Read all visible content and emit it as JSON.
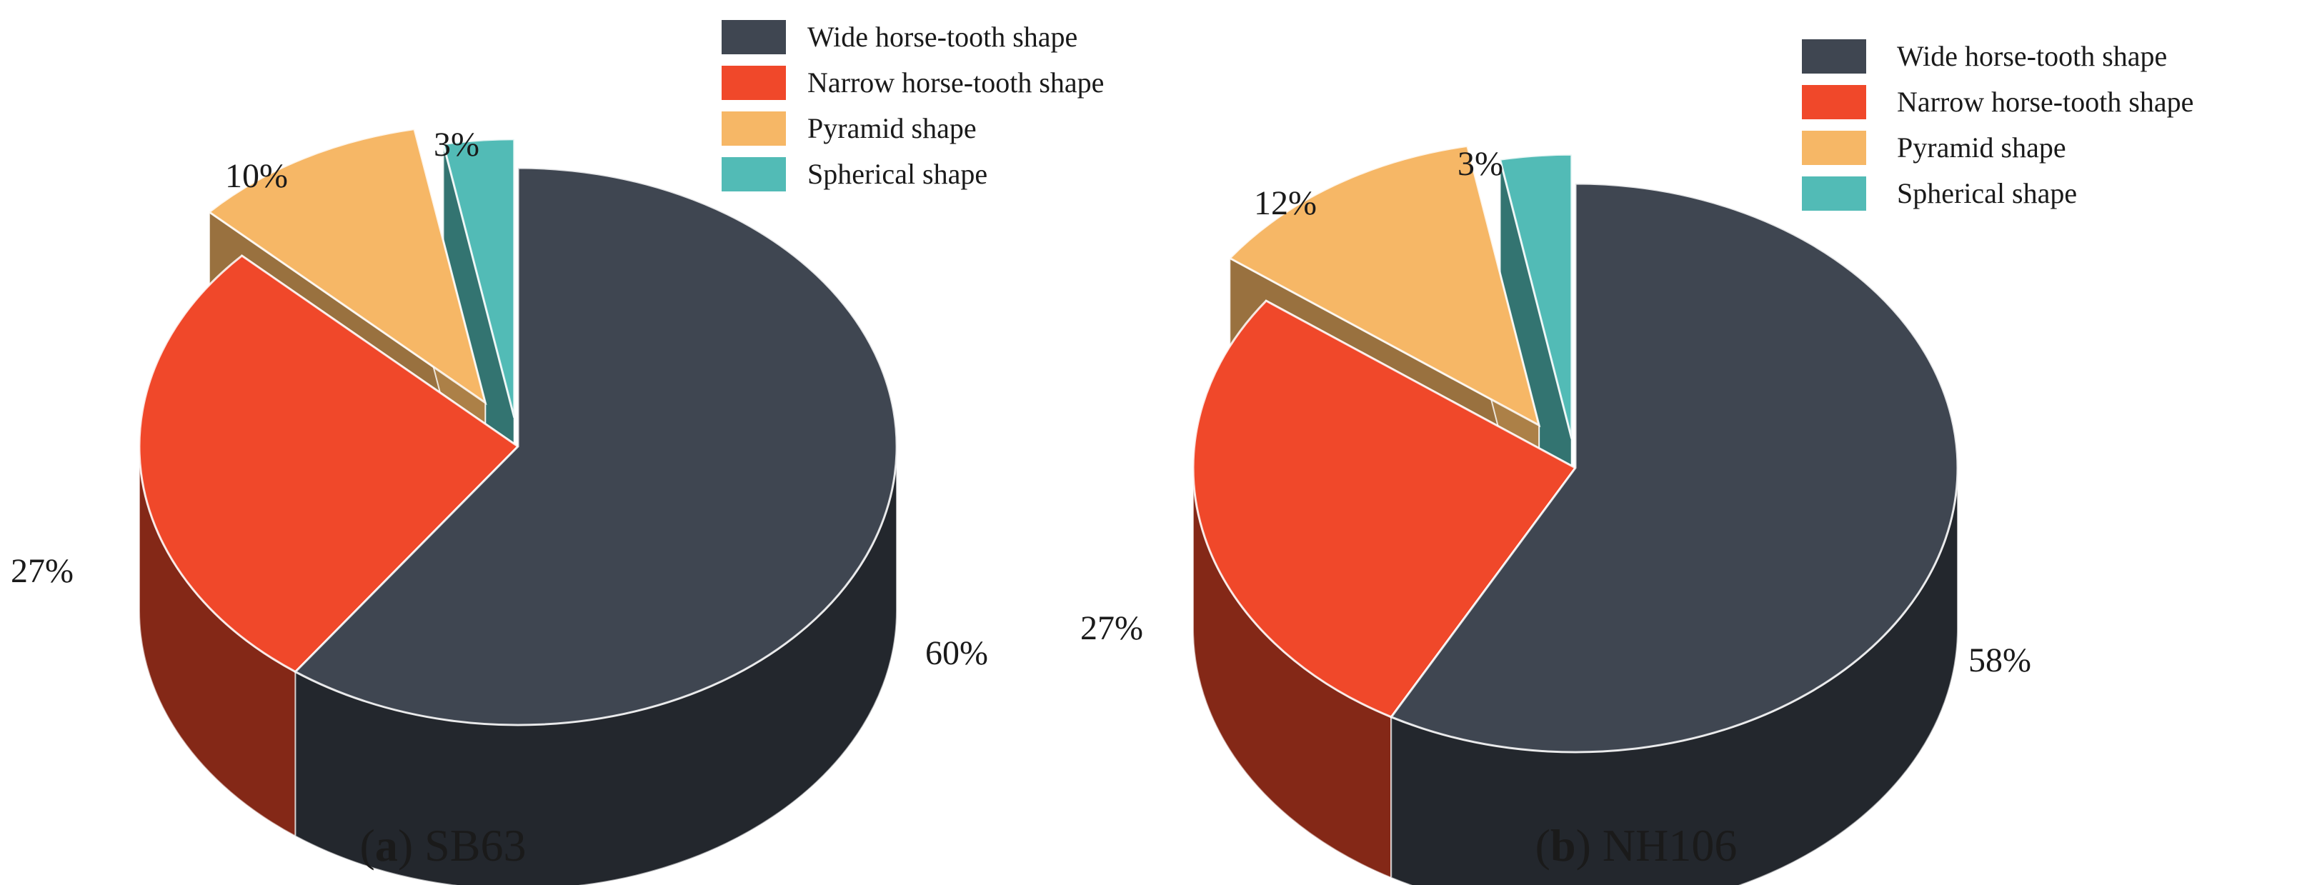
{
  "colors": {
    "wide": "#3f4651",
    "narrow": "#f0482a",
    "pyramid": "#f6b766",
    "spherical": "#52bbb6"
  },
  "chart_data": [
    {
      "type": "pie",
      "style": "3d-exploded",
      "caption_letter": "a",
      "caption_label": "SB63",
      "legend": [
        "Wide horse-tooth shape",
        "Narrow horse-tooth shape",
        "Pyramid shape",
        "Spherical shape"
      ],
      "slices": [
        {
          "label": "Wide horse-tooth shape",
          "value": 60,
          "display": "60%"
        },
        {
          "label": "Narrow horse-tooth shape",
          "value": 27,
          "display": "27%"
        },
        {
          "label": "Pyramid shape",
          "value": 10,
          "display": "10%"
        },
        {
          "label": "Spherical shape",
          "value": 3,
          "display": "3%"
        }
      ]
    },
    {
      "type": "pie",
      "style": "3d-exploded",
      "caption_letter": "b",
      "caption_label": "NH106",
      "legend": [
        "Wide horse-tooth shape",
        "Narrow horse-tooth shape",
        "Pyramid shape",
        "Spherical shape"
      ],
      "slices": [
        {
          "label": "Wide horse-tooth shape",
          "value": 58,
          "display": "58%"
        },
        {
          "label": "Narrow horse-tooth shape",
          "value": 27,
          "display": "27%"
        },
        {
          "label": "Pyramid shape",
          "value": 12,
          "display": "12%"
        },
        {
          "label": "Spherical shape",
          "value": 3,
          "display": "3%"
        }
      ]
    }
  ]
}
